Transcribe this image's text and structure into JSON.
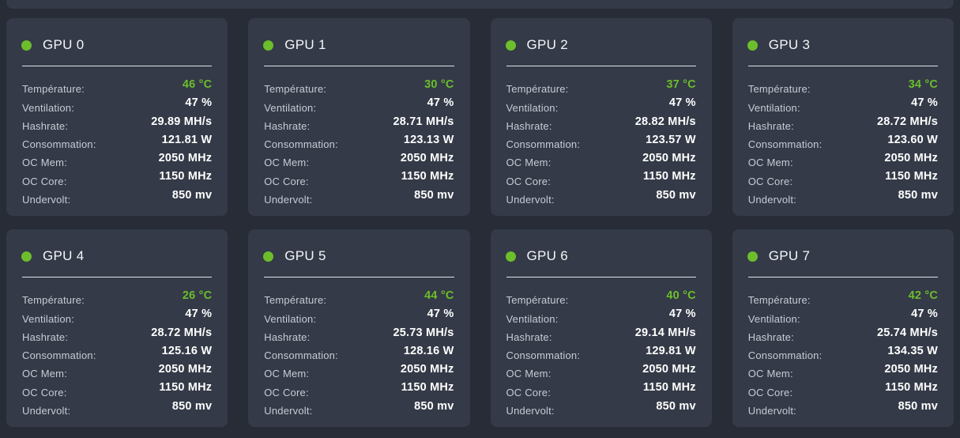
{
  "page": {
    "background": "#272c36",
    "card_background": "#343a47",
    "accent_green": "#6cbe2c"
  },
  "metric_keys": [
    "temperature",
    "ventilation",
    "hashrate",
    "consommation",
    "oc_mem",
    "oc_core",
    "undervolt"
  ],
  "labels": {
    "temperature": "Température:",
    "ventilation": "Ventilation:",
    "hashrate": "Hashrate:",
    "consommation": "Consommation:",
    "oc_mem": "OC Mem:",
    "oc_core": "OC Core:",
    "undervolt": "Undervolt:"
  },
  "gpus": [
    {
      "name": "GPU 0",
      "temperature": "46 °C",
      "ventilation": "47 %",
      "hashrate": "29.89 MH/s",
      "consommation": "121.81 W",
      "oc_mem": "2050 MHz",
      "oc_core": "1150 MHz",
      "undervolt": "850 mv"
    },
    {
      "name": "GPU 1",
      "temperature": "30 °C",
      "ventilation": "47 %",
      "hashrate": "28.71 MH/s",
      "consommation": "123.13 W",
      "oc_mem": "2050 MHz",
      "oc_core": "1150 MHz",
      "undervolt": "850 mv"
    },
    {
      "name": "GPU 2",
      "temperature": "37 °C",
      "ventilation": "47 %",
      "hashrate": "28.82 MH/s",
      "consommation": "123.57 W",
      "oc_mem": "2050 MHz",
      "oc_core": "1150 MHz",
      "undervolt": "850 mv"
    },
    {
      "name": "GPU 3",
      "temperature": "34 °C",
      "ventilation": "47 %",
      "hashrate": "28.72 MH/s",
      "consommation": "123.60 W",
      "oc_mem": "2050 MHz",
      "oc_core": "1150 MHz",
      "undervolt": "850 mv"
    },
    {
      "name": "GPU 4",
      "temperature": "26 °C",
      "ventilation": "47 %",
      "hashrate": "28.72 MH/s",
      "consommation": "125.16 W",
      "oc_mem": "2050 MHz",
      "oc_core": "1150 MHz",
      "undervolt": "850 mv"
    },
    {
      "name": "GPU 5",
      "temperature": "44 °C",
      "ventilation": "47 %",
      "hashrate": "25.73 MH/s",
      "consommation": "128.16 W",
      "oc_mem": "2050 MHz",
      "oc_core": "1150 MHz",
      "undervolt": "850 mv"
    },
    {
      "name": "GPU 6",
      "temperature": "40 °C",
      "ventilation": "47 %",
      "hashrate": "29.14 MH/s",
      "consommation": "129.81 W",
      "oc_mem": "2050 MHz",
      "oc_core": "1150 MHz",
      "undervolt": "850 mv"
    },
    {
      "name": "GPU 7",
      "temperature": "42 °C",
      "ventilation": "47 %",
      "hashrate": "25.74 MH/s",
      "consommation": "134.35 W",
      "oc_mem": "2050 MHz",
      "oc_core": "1150 MHz",
      "undervolt": "850 mv"
    }
  ]
}
